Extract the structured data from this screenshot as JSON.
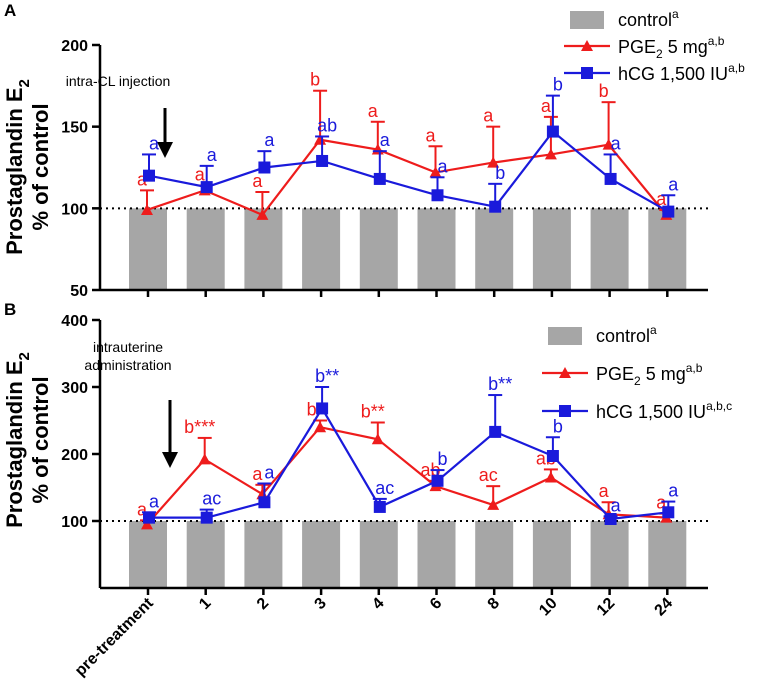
{
  "chart_data": [
    {
      "type": "bar+line",
      "panel_label": "A",
      "ylabel_line1": "Prostaglandin E",
      "ylabel_sub": "2",
      "ylabel_line2": "% of control",
      "ylim": [
        50,
        200
      ],
      "yticks": [
        50,
        100,
        150,
        200
      ],
      "reference_line": 100,
      "annotation": "intra-CL injection",
      "annotation_target_index": 0,
      "categories": [
        "pre-treatment",
        "1",
        "2",
        "3",
        "4",
        "6",
        "8",
        "10",
        "12",
        "24"
      ],
      "bars": {
        "name": "control",
        "sup": "a",
        "values": [
          100,
          100,
          100,
          100,
          100,
          100,
          100,
          100,
          100,
          100
        ],
        "color": "#a6a6a6"
      },
      "series": [
        {
          "name": "PGE",
          "name_sub": "2",
          "name_rest": " 5 mg",
          "sup": "a,b",
          "color": "#ee1c1c",
          "marker": "triangle",
          "values": [
            99,
            111,
            96,
            142,
            136,
            122,
            128,
            133,
            139,
            96
          ],
          "errors": [
            12,
            3,
            14,
            30,
            17,
            16,
            22,
            23,
            26,
            3
          ],
          "letters": [
            "a",
            "a",
            "a",
            "b",
            "a",
            "a",
            "a",
            "a",
            "b",
            "a"
          ]
        },
        {
          "name": "hCG 1,500 IU",
          "sup": "a,b",
          "color": "#1a1adb",
          "marker": "square",
          "values": [
            120,
            113,
            125,
            129,
            118,
            108,
            101,
            147,
            118,
            98
          ],
          "errors": [
            13,
            13,
            10,
            15,
            17,
            11,
            14,
            22,
            15,
            10
          ],
          "letters": [
            "a",
            "a",
            "a",
            "ab",
            "a",
            "a",
            "b",
            "b",
            "a",
            "a"
          ]
        }
      ]
    },
    {
      "type": "bar+line",
      "panel_label": "B",
      "ylabel_line1": "Prostaglandin E",
      "ylabel_sub": "2",
      "ylabel_line2": "% of control",
      "ylim": [
        0,
        400
      ],
      "yticks": [
        100,
        200,
        300,
        400
      ],
      "reference_line": 100,
      "annotation": "intrauterine administration",
      "annotation_line1": "intrauterine",
      "annotation_line2": "administration",
      "annotation_target_index": 0,
      "categories": [
        "pre-treatment",
        "1",
        "2",
        "3",
        "4",
        "6",
        "8",
        "10",
        "12",
        "24"
      ],
      "bars": {
        "name": "control",
        "sup": "a",
        "values": [
          100,
          100,
          100,
          100,
          100,
          100,
          100,
          100,
          100,
          100
        ],
        "color": "#a6a6a6"
      },
      "series": [
        {
          "name": "PGE",
          "name_sub": "2",
          "name_rest": " 5 mg",
          "sup": "a,b",
          "color": "#ee1c1c",
          "marker": "triangle",
          "values": [
            95,
            192,
            140,
            240,
            222,
            152,
            124,
            165,
            110,
            105
          ],
          "errors": [
            6,
            32,
            14,
            10,
            25,
            8,
            28,
            12,
            18,
            6
          ],
          "letters": [
            "a",
            "b***",
            "a",
            "b*",
            "b**",
            "ab",
            "ac",
            "ab",
            "a",
            "a"
          ]
        },
        {
          "name": "hCG 1,500 IU",
          "sup": "a,b,c",
          "color": "#1a1adb",
          "marker": "square",
          "values": [
            105,
            105,
            128,
            268,
            121,
            160,
            233,
            197,
            103,
            113
          ],
          "errors": [
            8,
            12,
            28,
            32,
            12,
            16,
            55,
            28,
            4,
            16
          ],
          "letters": [
            "a",
            "ac",
            "a",
            "b**",
            "ac",
            "b",
            "b**",
            "b",
            "a",
            "a"
          ]
        }
      ]
    }
  ]
}
